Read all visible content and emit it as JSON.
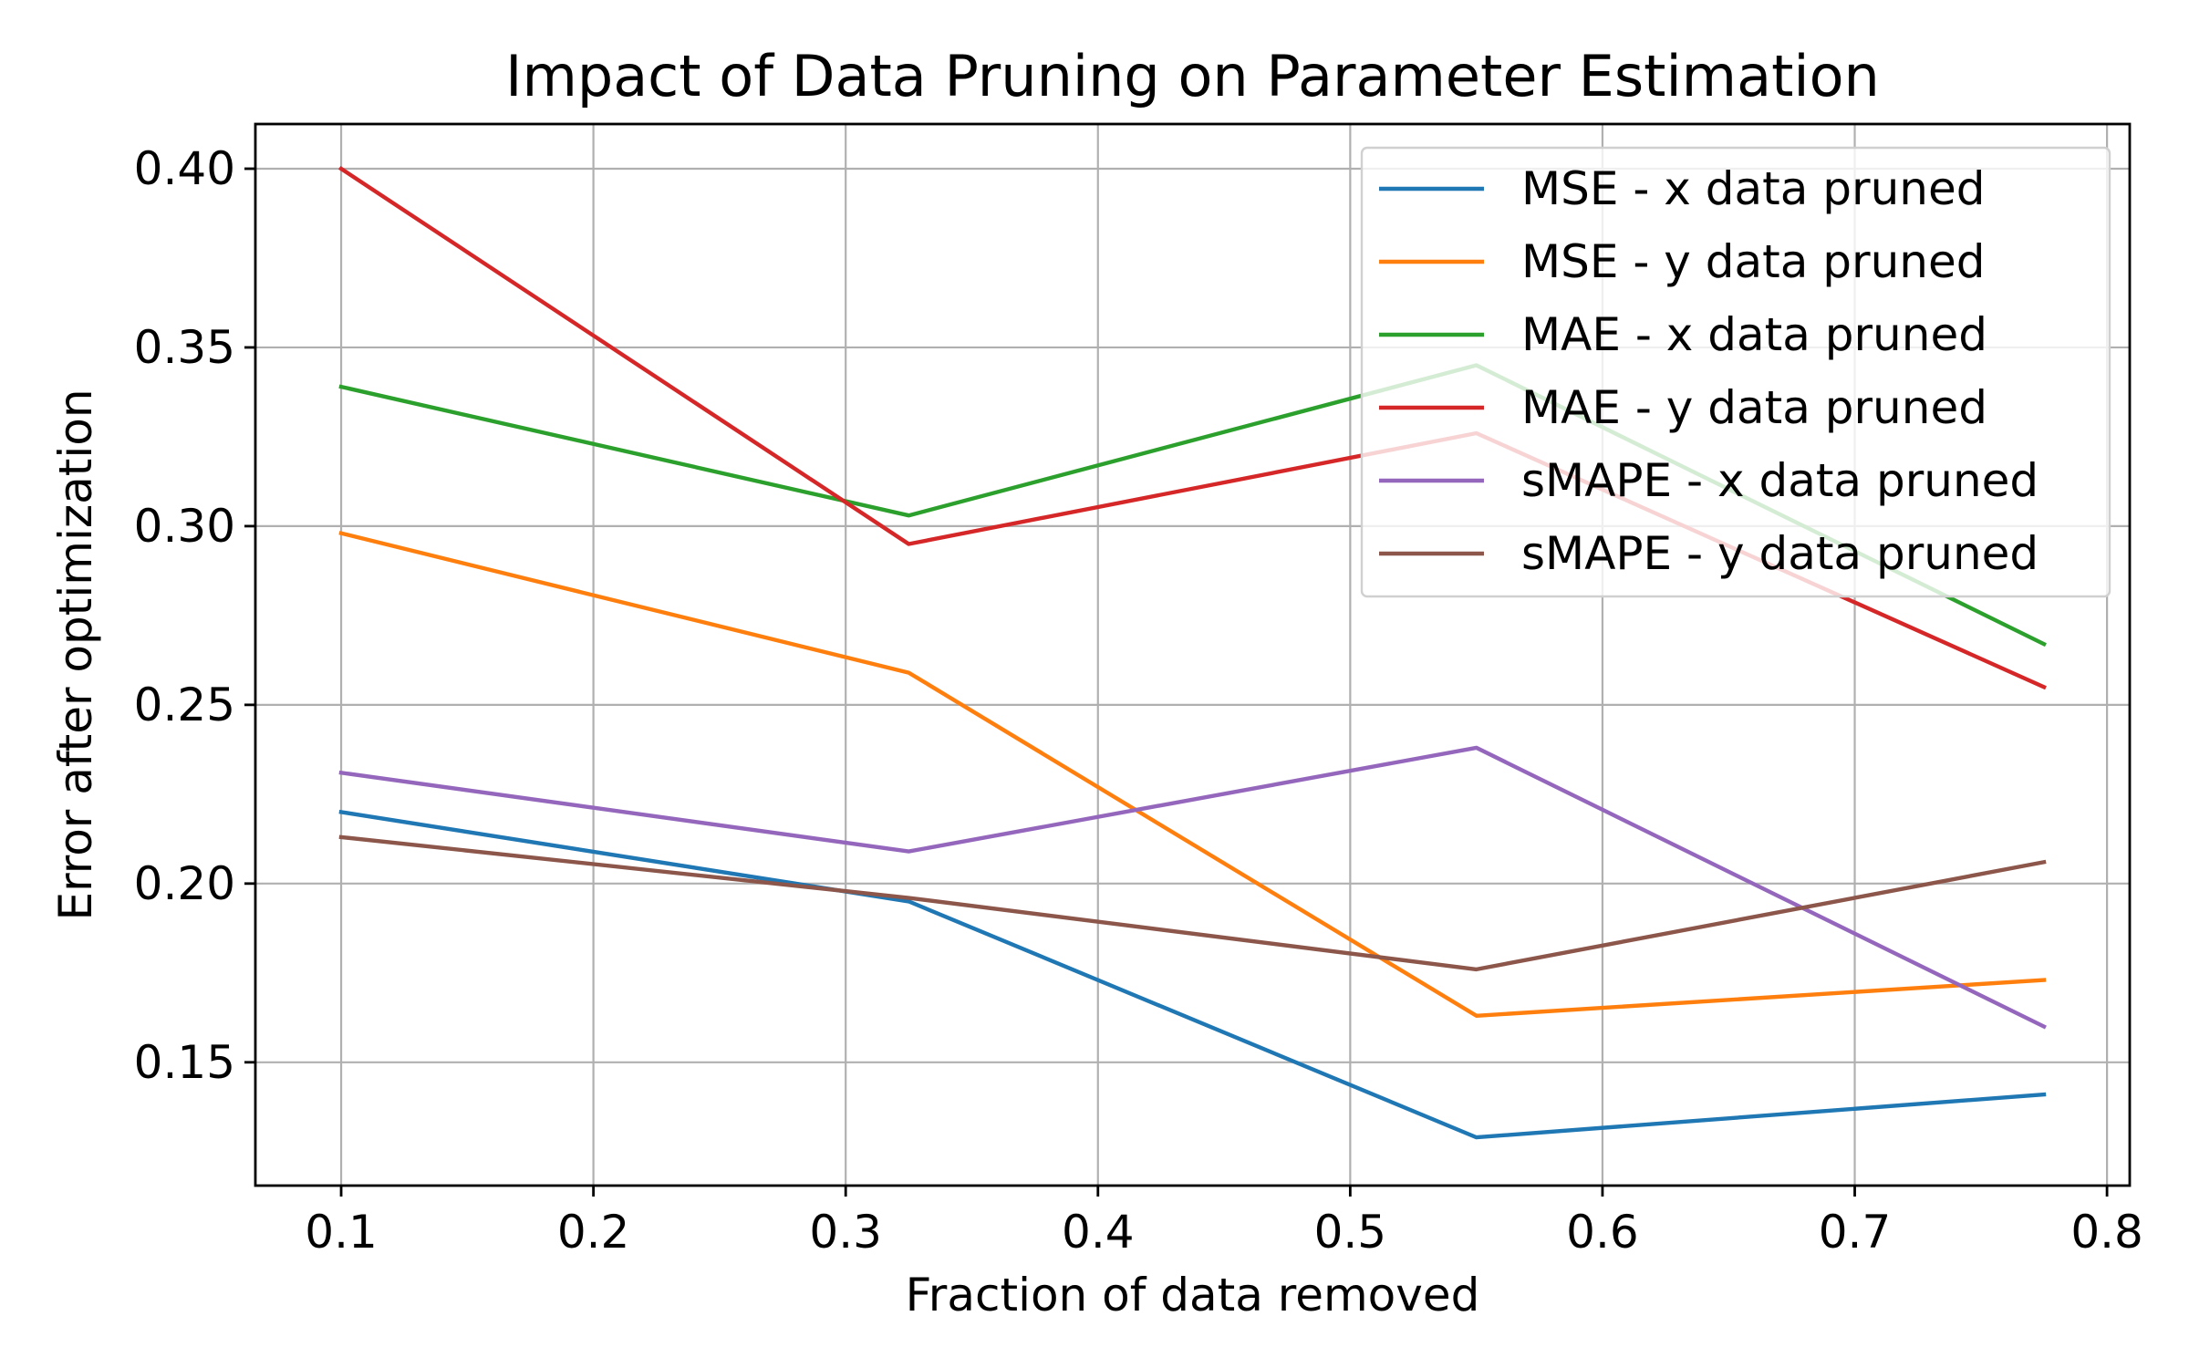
{
  "chart_data": {
    "type": "line",
    "title": "Impact of Data Pruning on Parameter Estimation",
    "xlabel": "Fraction of data removed",
    "ylabel": "Error after optimization",
    "x": [
      0.1,
      0.325,
      0.55,
      0.775
    ],
    "xlim": [
      0.066,
      0.809
    ],
    "ylim": [
      0.1155,
      0.4125
    ],
    "xticks": [
      0.1,
      0.2,
      0.3,
      0.4,
      0.5,
      0.6,
      0.7,
      0.8
    ],
    "xtick_labels": [
      "0.1",
      "0.2",
      "0.3",
      "0.4",
      "0.5",
      "0.6",
      "0.7",
      "0.8"
    ],
    "yticks": [
      0.15,
      0.2,
      0.25,
      0.3,
      0.35,
      0.4
    ],
    "ytick_labels": [
      "0.15",
      "0.20",
      "0.25",
      "0.30",
      "0.35",
      "0.40"
    ],
    "grid": true,
    "legend_position": "upper right",
    "series": [
      {
        "name": "MSE - x data pruned",
        "color": "#1f77b4",
        "values": [
          0.22,
          0.195,
          0.129,
          0.141
        ]
      },
      {
        "name": "MSE - y data pruned",
        "color": "#ff7f0e",
        "values": [
          0.298,
          0.259,
          0.163,
          0.173
        ]
      },
      {
        "name": "MAE - x data pruned",
        "color": "#2ca02c",
        "values": [
          0.339,
          0.303,
          0.345,
          0.267
        ]
      },
      {
        "name": "MAE - y data pruned",
        "color": "#d62728",
        "values": [
          0.4,
          0.295,
          0.326,
          0.255
        ]
      },
      {
        "name": "sMAPE - x data pruned",
        "color": "#9467bd",
        "values": [
          0.231,
          0.209,
          0.238,
          0.16
        ]
      },
      {
        "name": "sMAPE - y data pruned",
        "color": "#8c564b",
        "values": [
          0.213,
          0.196,
          0.176,
          0.206
        ]
      }
    ]
  }
}
